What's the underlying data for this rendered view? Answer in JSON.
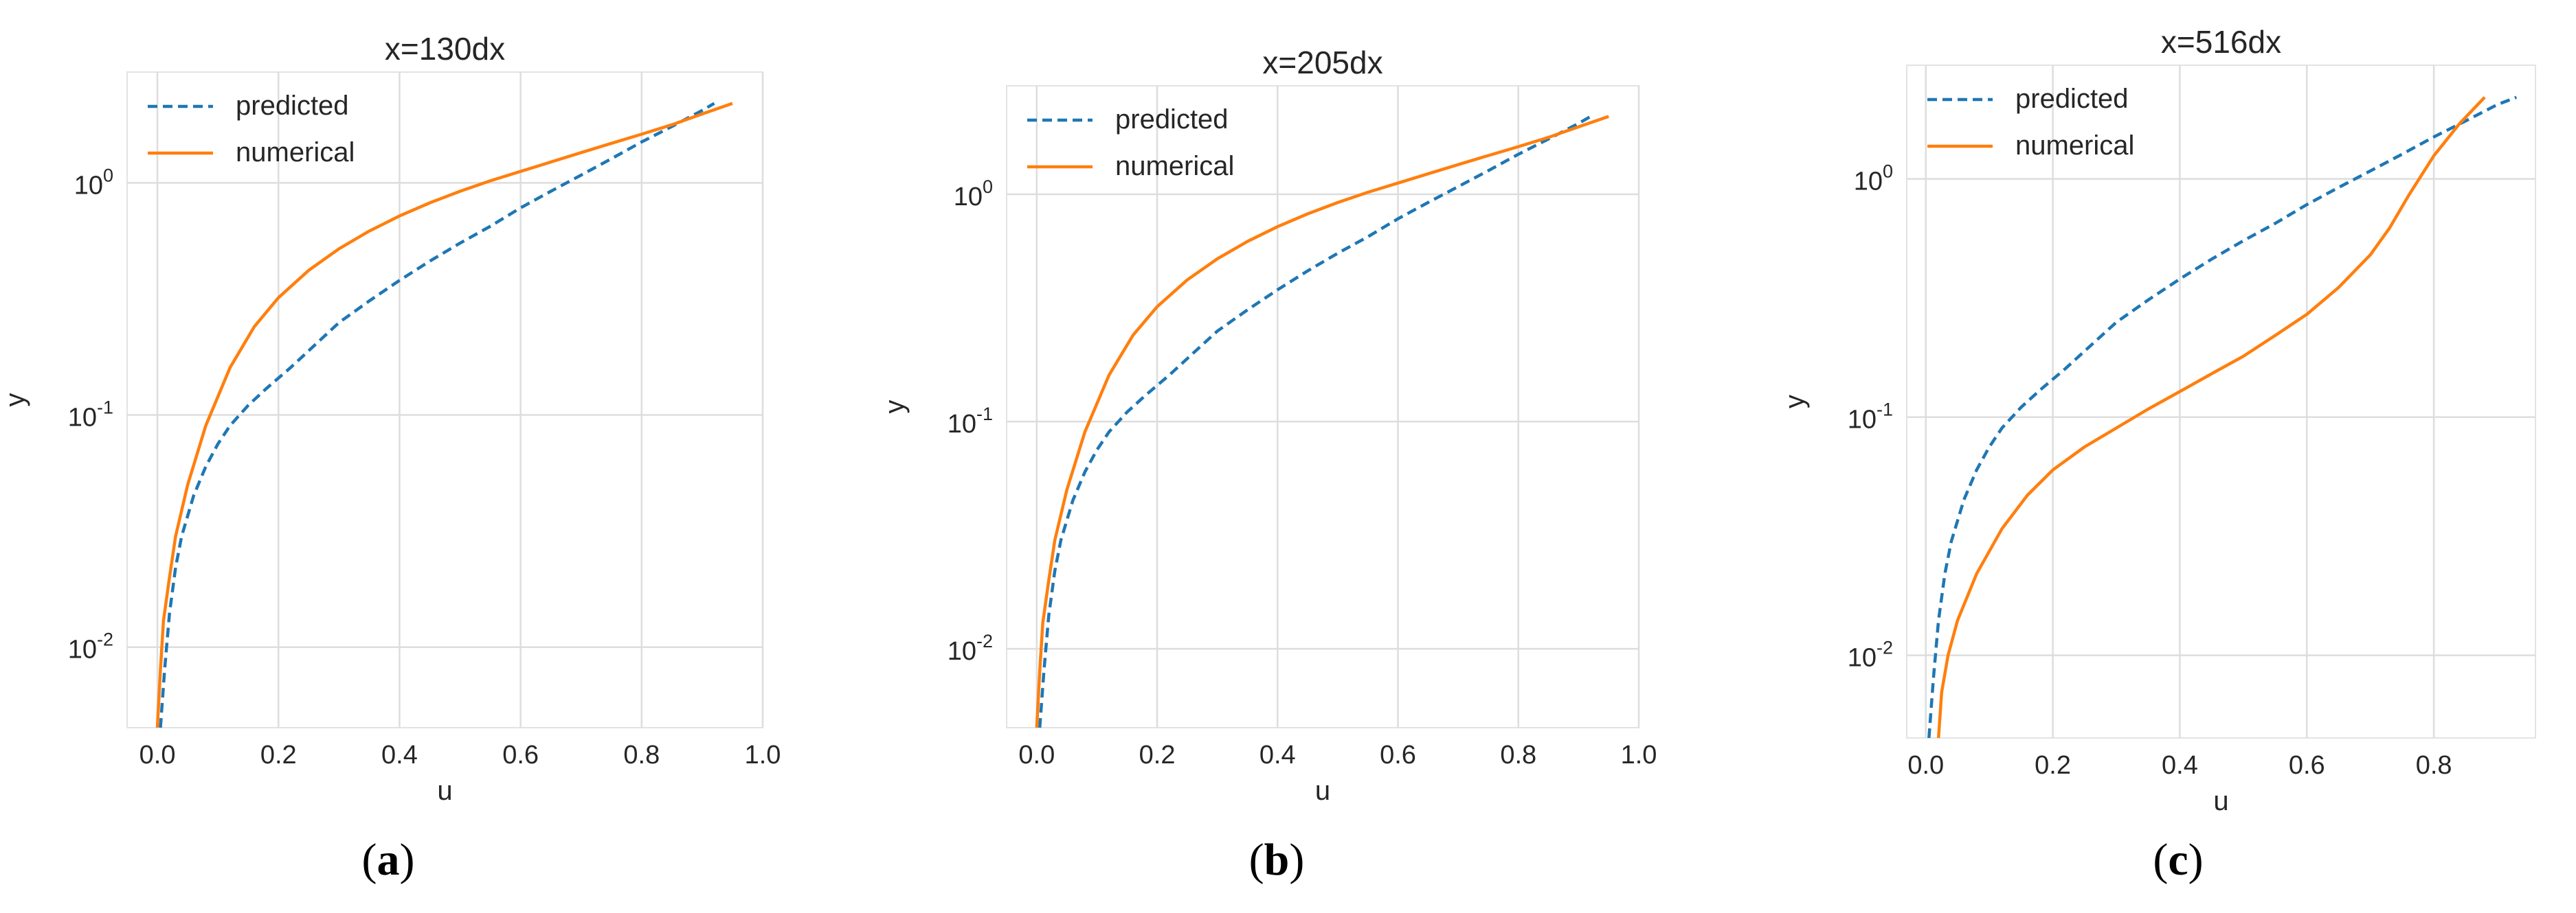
{
  "panels": [
    {
      "label_open": "(",
      "label_letter": "a",
      "label_close": ")"
    },
    {
      "label_open": "(",
      "label_letter": "b",
      "label_close": ")"
    },
    {
      "label_open": "(",
      "label_letter": "c",
      "label_close": ")"
    }
  ],
  "chart_data": [
    {
      "type": "line",
      "title": "x=130dx",
      "xlabel": "u",
      "ylabel": "y",
      "xlim": [
        -0.05,
        1.0
      ],
      "ylim": [
        0.0045,
        3.0
      ],
      "yscale": "log",
      "xticks": [
        0.0,
        0.2,
        0.4,
        0.6,
        0.8,
        1.0
      ],
      "xtick_labels": [
        "0.0",
        "0.2",
        "0.4",
        "0.6",
        "0.8",
        "1.0"
      ],
      "yticks": [
        0.01,
        0.1,
        1.0
      ],
      "ytick_labels": [
        "10",
        "10",
        "10"
      ],
      "ytick_exponents": [
        "-2",
        "-1",
        "0"
      ],
      "grid": true,
      "legend": "top-left",
      "series": [
        {
          "name": "predicted",
          "style": "dashed",
          "color": "#1f77b4",
          "x": [
            0.005,
            0.012,
            0.02,
            0.03,
            0.04,
            0.06,
            0.08,
            0.1,
            0.12,
            0.15,
            0.18,
            0.22,
            0.26,
            0.3,
            0.35,
            0.4,
            0.45,
            0.5,
            0.55,
            0.6,
            0.65,
            0.7,
            0.75,
            0.8,
            0.85,
            0.9,
            0.92
          ],
          "y": [
            0.0045,
            0.008,
            0.014,
            0.022,
            0.03,
            0.045,
            0.06,
            0.075,
            0.09,
            0.11,
            0.13,
            0.16,
            0.2,
            0.25,
            0.31,
            0.38,
            0.46,
            0.55,
            0.65,
            0.78,
            0.92,
            1.08,
            1.27,
            1.5,
            1.75,
            2.05,
            2.2
          ]
        },
        {
          "name": "numerical",
          "style": "solid",
          "color": "#ff7f0e",
          "x": [
            0.0,
            0.005,
            0.01,
            0.02,
            0.03,
            0.05,
            0.08,
            0.12,
            0.16,
            0.2,
            0.25,
            0.3,
            0.35,
            0.4,
            0.45,
            0.5,
            0.55,
            0.6,
            0.65,
            0.7,
            0.75,
            0.8,
            0.85,
            0.9,
            0.95
          ],
          "y": [
            0.0045,
            0.008,
            0.013,
            0.02,
            0.03,
            0.05,
            0.09,
            0.16,
            0.24,
            0.32,
            0.42,
            0.52,
            0.62,
            0.72,
            0.82,
            0.92,
            1.02,
            1.12,
            1.23,
            1.35,
            1.48,
            1.62,
            1.78,
            1.98,
            2.2
          ]
        }
      ]
    },
    {
      "type": "line",
      "title": "x=205dx",
      "xlabel": "u",
      "ylabel": "y",
      "xlim": [
        -0.05,
        1.0
      ],
      "ylim": [
        0.0045,
        3.0
      ],
      "yscale": "log",
      "xticks": [
        0.0,
        0.2,
        0.4,
        0.6,
        0.8,
        1.0
      ],
      "xtick_labels": [
        "0.0",
        "0.2",
        "0.4",
        "0.6",
        "0.8",
        "1.0"
      ],
      "yticks": [
        0.01,
        0.1,
        1.0
      ],
      "ytick_labels": [
        "10",
        "10",
        "10"
      ],
      "ytick_exponents": [
        "-2",
        "-1",
        "0"
      ],
      "grid": true,
      "legend": "top-left",
      "series": [
        {
          "name": "predicted",
          "style": "dashed",
          "color": "#1f77b4",
          "x": [
            0.005,
            0.012,
            0.02,
            0.03,
            0.04,
            0.06,
            0.08,
            0.1,
            0.12,
            0.15,
            0.18,
            0.22,
            0.26,
            0.3,
            0.35,
            0.4,
            0.45,
            0.5,
            0.55,
            0.6,
            0.65,
            0.7,
            0.75,
            0.8,
            0.85,
            0.9,
            0.92
          ],
          "y": [
            0.0045,
            0.008,
            0.014,
            0.022,
            0.03,
            0.045,
            0.06,
            0.075,
            0.09,
            0.11,
            0.13,
            0.16,
            0.2,
            0.25,
            0.31,
            0.38,
            0.46,
            0.55,
            0.65,
            0.78,
            0.92,
            1.08,
            1.27,
            1.5,
            1.75,
            2.05,
            2.2
          ]
        },
        {
          "name": "numerical",
          "style": "solid",
          "color": "#ff7f0e",
          "x": [
            0.0,
            0.005,
            0.01,
            0.02,
            0.03,
            0.05,
            0.08,
            0.12,
            0.16,
            0.2,
            0.25,
            0.3,
            0.35,
            0.4,
            0.45,
            0.5,
            0.55,
            0.6,
            0.65,
            0.7,
            0.75,
            0.8,
            0.85,
            0.9,
            0.95
          ],
          "y": [
            0.0045,
            0.008,
            0.013,
            0.02,
            0.03,
            0.05,
            0.09,
            0.16,
            0.24,
            0.32,
            0.42,
            0.52,
            0.62,
            0.72,
            0.82,
            0.92,
            1.02,
            1.12,
            1.23,
            1.35,
            1.48,
            1.62,
            1.78,
            1.98,
            2.2
          ]
        }
      ]
    },
    {
      "type": "line",
      "title": "x=516dx",
      "xlabel": "u",
      "ylabel": "y",
      "xlim": [
        -0.03,
        0.96
      ],
      "ylim": [
        0.0045,
        3.0
      ],
      "yscale": "log",
      "xticks": [
        0.0,
        0.2,
        0.4,
        0.6,
        0.8
      ],
      "xtick_labels": [
        "0.0",
        "0.2",
        "0.4",
        "0.6",
        "0.8"
      ],
      "yticks": [
        0.01,
        0.1,
        1.0
      ],
      "ytick_labels": [
        "10",
        "10",
        "10"
      ],
      "ytick_exponents": [
        "-2",
        "-1",
        "0"
      ],
      "grid": true,
      "legend": "top-left",
      "series": [
        {
          "name": "predicted",
          "style": "dashed",
          "color": "#1f77b4",
          "x": [
            0.005,
            0.012,
            0.02,
            0.03,
            0.04,
            0.06,
            0.08,
            0.1,
            0.12,
            0.15,
            0.18,
            0.22,
            0.26,
            0.3,
            0.35,
            0.4,
            0.45,
            0.5,
            0.55,
            0.6,
            0.65,
            0.7,
            0.75,
            0.8,
            0.85,
            0.9,
            0.93
          ],
          "y": [
            0.0045,
            0.008,
            0.014,
            0.022,
            0.03,
            0.045,
            0.06,
            0.075,
            0.09,
            0.11,
            0.13,
            0.16,
            0.2,
            0.25,
            0.31,
            0.38,
            0.46,
            0.55,
            0.65,
            0.78,
            0.92,
            1.08,
            1.27,
            1.5,
            1.75,
            2.05,
            2.2
          ]
        },
        {
          "name": "numerical",
          "style": "solid",
          "color": "#ff7f0e",
          "x": [
            0.02,
            0.025,
            0.035,
            0.05,
            0.08,
            0.12,
            0.16,
            0.2,
            0.25,
            0.3,
            0.35,
            0.4,
            0.45,
            0.5,
            0.55,
            0.6,
            0.65,
            0.7,
            0.73,
            0.76,
            0.8,
            0.84,
            0.88
          ],
          "y": [
            0.0045,
            0.007,
            0.01,
            0.014,
            0.022,
            0.034,
            0.047,
            0.06,
            0.075,
            0.09,
            0.108,
            0.128,
            0.152,
            0.18,
            0.22,
            0.27,
            0.35,
            0.48,
            0.62,
            0.85,
            1.25,
            1.7,
            2.2
          ]
        }
      ]
    }
  ]
}
